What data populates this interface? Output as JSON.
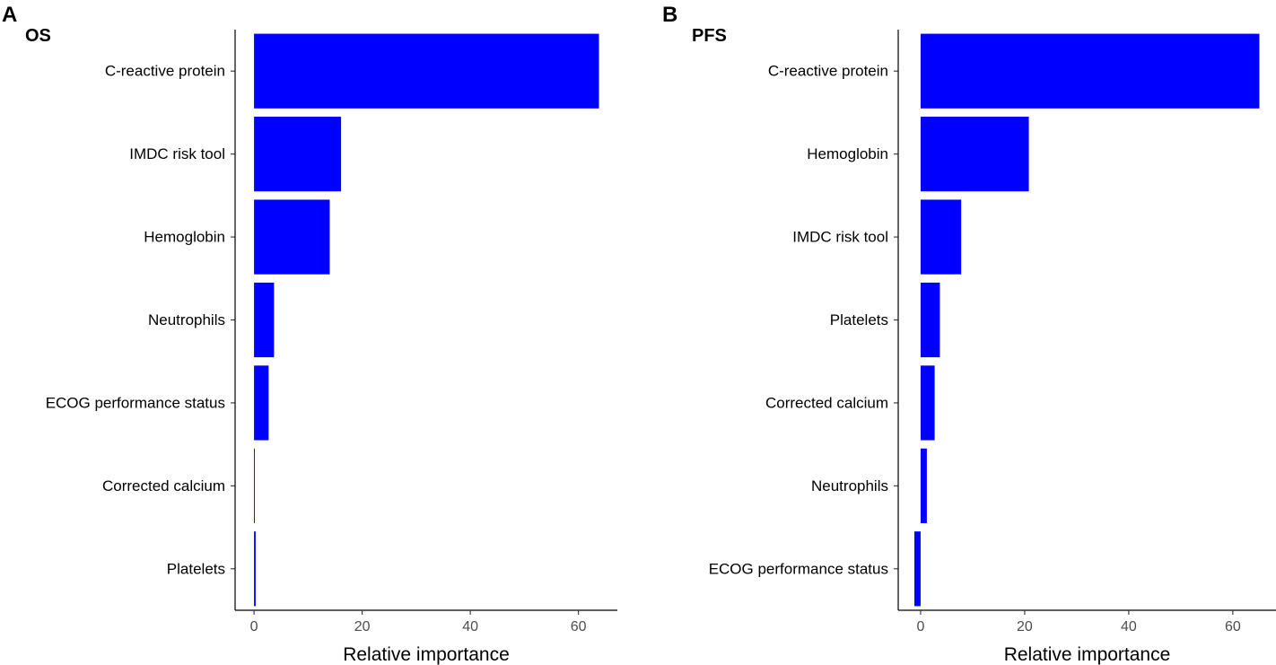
{
  "figure": {
    "accent_color": "#0000FF"
  },
  "chart_data": [
    {
      "type": "bar",
      "orientation": "horizontal",
      "panel_letter": "A",
      "title": "OS",
      "categories": [
        "C-reactive protein",
        "IMDC risk tool",
        "Hemoglobin",
        "Neutrophils",
        "ECOG performance status",
        "Corrected calcium",
        "Platelets"
      ],
      "values": [
        63.8,
        16.1,
        14.0,
        3.7,
        2.7,
        0.15,
        0.3
      ],
      "xlabel": "Relative importance",
      "ylabel": "",
      "xlim": [
        -3.5,
        67.2
      ],
      "xticks": [
        0,
        20,
        40,
        60
      ],
      "xtick_labels": [
        "0",
        "20",
        "40",
        "60"
      ],
      "grid": false,
      "color": "#0000FF"
    },
    {
      "type": "bar",
      "orientation": "horizontal",
      "panel_letter": "B",
      "title": "PFS",
      "categories": [
        "C-reactive protein",
        "Hemoglobin",
        "IMDC risk tool",
        "Platelets",
        "Corrected calcium",
        "Neutrophils",
        "ECOG performance status"
      ],
      "values": [
        65.1,
        20.8,
        7.8,
        3.7,
        2.7,
        1.2,
        -1.2
      ],
      "xlabel": "Relative importance",
      "ylabel": "",
      "xlim": [
        -4.3,
        68.3
      ],
      "xticks": [
        0,
        20,
        40,
        60
      ],
      "xtick_labels": [
        "0",
        "20",
        "40",
        "60"
      ],
      "grid": false,
      "color": "#0000FF"
    }
  ]
}
